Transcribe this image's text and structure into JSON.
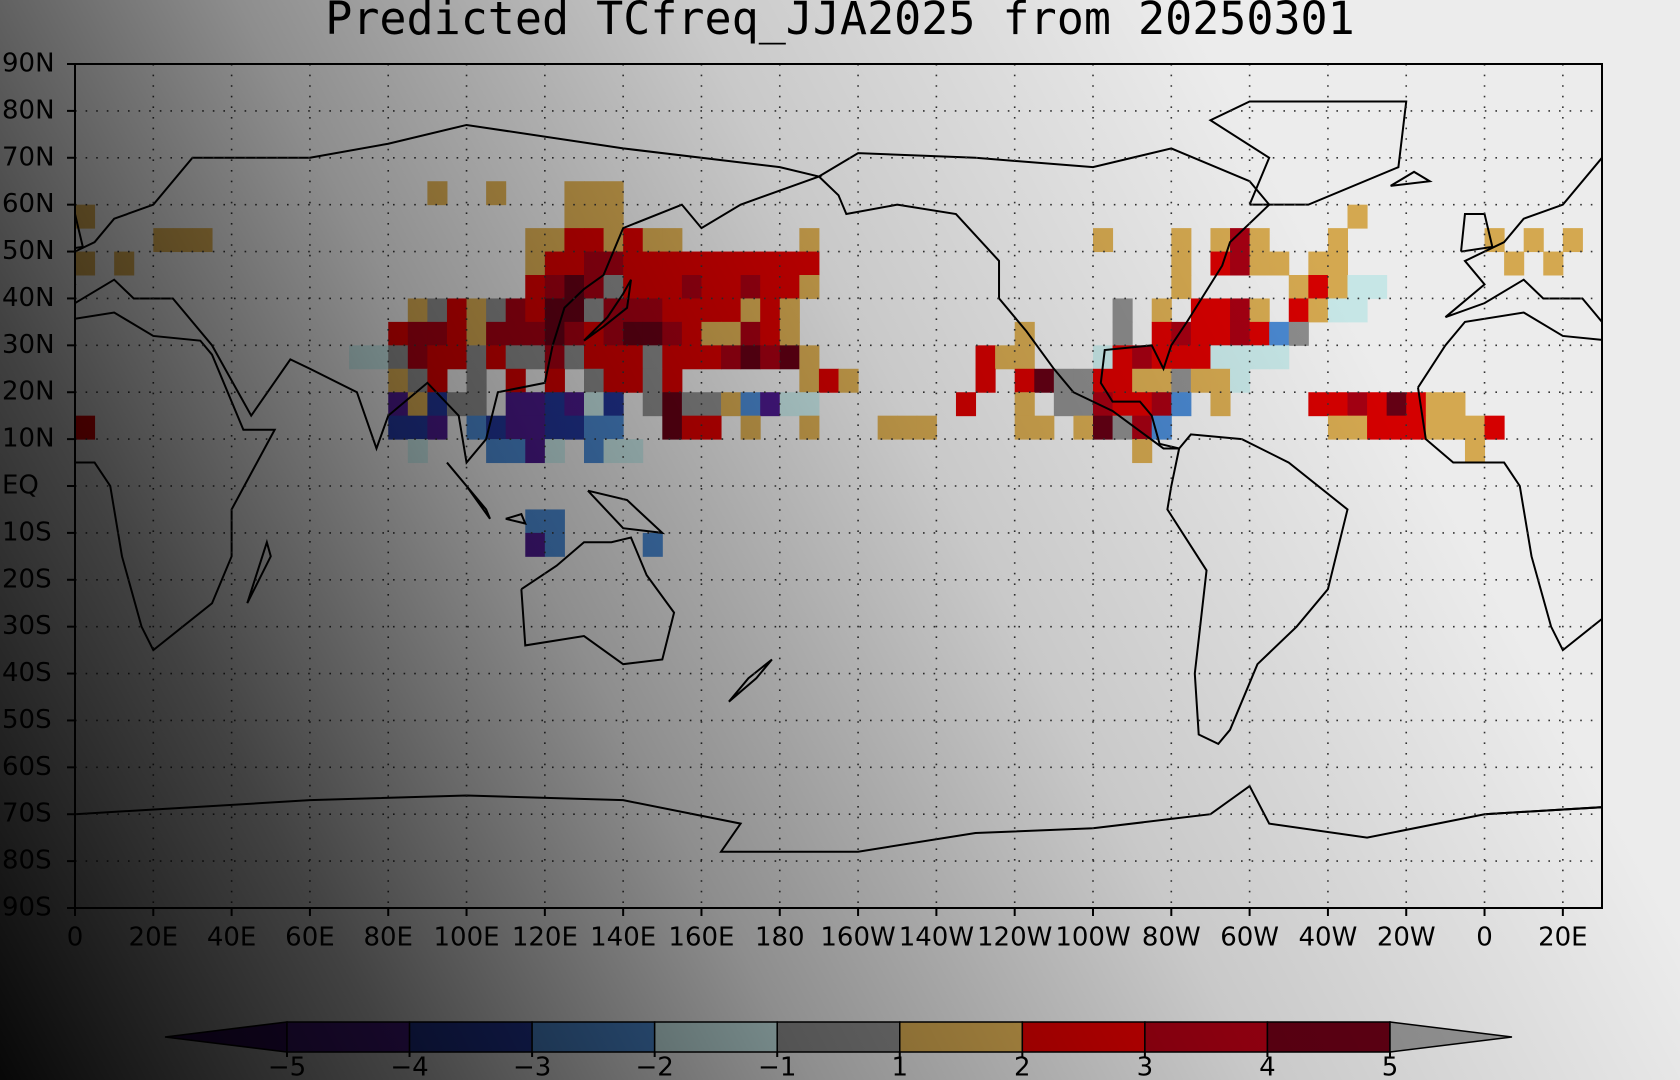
{
  "chart_data": {
    "type": "heatmap",
    "title": "Predicted TCfreq_JJA2025 from 20250301",
    "xlim": [
      0,
      390
    ],
    "ylim": [
      -90,
      90
    ],
    "grid": true,
    "xticks": [
      0,
      {
        "value": 20,
        "label": "20E"
      },
      {
        "value": 40,
        "label": "40E"
      },
      {
        "value": 60,
        "label": "60E"
      },
      {
        "value": 80,
        "label": "80E"
      },
      {
        "value": 100,
        "label": "100E"
      },
      {
        "value": 120,
        "label": "120E"
      },
      {
        "value": 140,
        "label": "140E"
      },
      {
        "value": 160,
        "label": "160E"
      },
      180,
      {
        "value": 200,
        "label": "160W"
      },
      {
        "value": 220,
        "label": "140W"
      },
      {
        "value": 240,
        "label": "120W"
      },
      {
        "value": 260,
        "label": "100W"
      },
      {
        "value": 280,
        "label": "80W"
      },
      {
        "value": 300,
        "label": "60W"
      },
      {
        "value": 320,
        "label": "40W"
      },
      {
        "value": 340,
        "label": "20W"
      },
      {
        "value": 360,
        "label": "0"
      },
      {
        "value": 380,
        "label": "20E"
      }
    ],
    "yticks": [
      {
        "value": 90,
        "label": "90N"
      },
      {
        "value": 80,
        "label": "80N"
      },
      {
        "value": 70,
        "label": "70N"
      },
      {
        "value": 60,
        "label": "60N"
      },
      {
        "value": 50,
        "label": "50N"
      },
      {
        "value": 40,
        "label": "40N"
      },
      {
        "value": 30,
        "label": "30N"
      },
      {
        "value": 20,
        "label": "20N"
      },
      {
        "value": 10,
        "label": "10N"
      },
      {
        "value": 0,
        "label": "EQ"
      },
      {
        "value": -10,
        "label": "10S"
      },
      {
        "value": -20,
        "label": "20S"
      },
      {
        "value": -30,
        "label": "30S"
      },
      {
        "value": -40,
        "label": "40S"
      },
      {
        "value": -50,
        "label": "50S"
      },
      {
        "value": -60,
        "label": "60S"
      },
      {
        "value": -70,
        "label": "70S"
      },
      {
        "value": -80,
        "label": "80S"
      },
      {
        "value": -90,
        "label": "90S"
      }
    ],
    "colorbar": {
      "ticks": [
        {
          "value": -5,
          "label": "−5"
        },
        {
          "value": -4,
          "label": "−4"
        },
        {
          "value": -3,
          "label": "−3"
        },
        {
          "value": -2,
          "label": "−2"
        },
        {
          "value": -1,
          "label": "−1"
        },
        1,
        2,
        3,
        4,
        5
      ],
      "colors": [
        "#3a0e6e",
        "#4b1a8c",
        "#22369a",
        "#4a88d0",
        "#c6e6e6",
        "#8c8c8c",
        "#d4a850",
        "#d40000",
        "#a30012",
        "#640014",
        "#9a9a9a"
      ]
    },
    "cells": [
      [
        90,
        60,
        1.5
      ],
      [
        105,
        60,
        1.5
      ],
      [
        125,
        60,
        1.5
      ],
      [
        130,
        60,
        1.5
      ],
      [
        135,
        60,
        1.5
      ],
      [
        0,
        55,
        1.5
      ],
      [
        125,
        55,
        1.5
      ],
      [
        130,
        55,
        1.5
      ],
      [
        135,
        55,
        1.5
      ],
      [
        325,
        55,
        1.5
      ],
      [
        20,
        50,
        1.5
      ],
      [
        25,
        50,
        1.5
      ],
      [
        30,
        50,
        1.5
      ],
      [
        115,
        50,
        1.5
      ],
      [
        120,
        50,
        1.5
      ],
      [
        125,
        50,
        2.5
      ],
      [
        130,
        50,
        2.5
      ],
      [
        135,
        50,
        1.5
      ],
      [
        140,
        50,
        2.5
      ],
      [
        145,
        50,
        1.5
      ],
      [
        150,
        50,
        1.5
      ],
      [
        185,
        50,
        1.5
      ],
      [
        260,
        50,
        1.5
      ],
      [
        280,
        50,
        1.5
      ],
      [
        290,
        50,
        1.5
      ],
      [
        295,
        50,
        3.5
      ],
      [
        300,
        50,
        1.5
      ],
      [
        320,
        50,
        1.5
      ],
      [
        360,
        50,
        1.5
      ],
      [
        370,
        50,
        1.5
      ],
      [
        380,
        50,
        1.5
      ],
      [
        0,
        45,
        1.5
      ],
      [
        10,
        45,
        1.5
      ],
      [
        115,
        45,
        1.5
      ],
      [
        120,
        45,
        2.5
      ],
      [
        125,
        45,
        2.5
      ],
      [
        130,
        45,
        3.5
      ],
      [
        135,
        45,
        3.5
      ],
      [
        140,
        45,
        2.5
      ],
      [
        145,
        45,
        2.5
      ],
      [
        150,
        45,
        2.5
      ],
      [
        155,
        45,
        2.5
      ],
      [
        160,
        45,
        2.5
      ],
      [
        165,
        45,
        2.5
      ],
      [
        170,
        45,
        2.5
      ],
      [
        175,
        45,
        2.5
      ],
      [
        180,
        45,
        2.5
      ],
      [
        185,
        45,
        2.5
      ],
      [
        280,
        45,
        1.5
      ],
      [
        290,
        45,
        2.5
      ],
      [
        295,
        45,
        3.5
      ],
      [
        300,
        45,
        1.5
      ],
      [
        305,
        45,
        1.5
      ],
      [
        315,
        45,
        1.5
      ],
      [
        320,
        45,
        1.5
      ],
      [
        365,
        45,
        1.5
      ],
      [
        375,
        45,
        1.5
      ],
      [
        115,
        40,
        2.5
      ],
      [
        120,
        40,
        3.5
      ],
      [
        125,
        40,
        4.5
      ],
      [
        130,
        40,
        3.5
      ],
      [
        135,
        40,
        0
      ],
      [
        140,
        40,
        2.5
      ],
      [
        145,
        40,
        2.5
      ],
      [
        150,
        40,
        2.5
      ],
      [
        155,
        40,
        3.5
      ],
      [
        160,
        40,
        2.5
      ],
      [
        165,
        40,
        2.5
      ],
      [
        170,
        40,
        3.5
      ],
      [
        175,
        40,
        2.5
      ],
      [
        180,
        40,
        2.5
      ],
      [
        185,
        40,
        1.5
      ],
      [
        280,
        40,
        1.5
      ],
      [
        310,
        40,
        1.5
      ],
      [
        315,
        40,
        2.5
      ],
      [
        320,
        40,
        1.5
      ],
      [
        325,
        40,
        -1.5
      ],
      [
        330,
        40,
        -1.5
      ],
      [
        85,
        35,
        1.5
      ],
      [
        90,
        35,
        0
      ],
      [
        95,
        35,
        2.5
      ],
      [
        100,
        35,
        1.5
      ],
      [
        105,
        35,
        0
      ],
      [
        110,
        35,
        3.5
      ],
      [
        115,
        35,
        2.5
      ],
      [
        120,
        35,
        4.5
      ],
      [
        125,
        35,
        4.5
      ],
      [
        130,
        35,
        0
      ],
      [
        135,
        35,
        3.5
      ],
      [
        140,
        35,
        3.5
      ],
      [
        145,
        35,
        3.5
      ],
      [
        150,
        35,
        2.5
      ],
      [
        155,
        35,
        2.5
      ],
      [
        160,
        35,
        2.5
      ],
      [
        165,
        35,
        2.5
      ],
      [
        170,
        35,
        1.5
      ],
      [
        175,
        35,
        2.5
      ],
      [
        180,
        35,
        1.5
      ],
      [
        265,
        35,
        0
      ],
      [
        275,
        35,
        1.5
      ],
      [
        285,
        35,
        2.5
      ],
      [
        290,
        35,
        2.5
      ],
      [
        295,
        35,
        3.5
      ],
      [
        300,
        35,
        1.5
      ],
      [
        310,
        35,
        2.5
      ],
      [
        315,
        35,
        1.5
      ],
      [
        320,
        35,
        -1.5
      ],
      [
        325,
        35,
        -1.5
      ],
      [
        80,
        30,
        2.5
      ],
      [
        85,
        30,
        3.5
      ],
      [
        90,
        30,
        3.5
      ],
      [
        95,
        30,
        2.5
      ],
      [
        100,
        30,
        1.5
      ],
      [
        105,
        30,
        3.5
      ],
      [
        110,
        30,
        3.5
      ],
      [
        115,
        30,
        3.5
      ],
      [
        120,
        30,
        4.5
      ],
      [
        125,
        30,
        3.5
      ],
      [
        130,
        30,
        2.5
      ],
      [
        135,
        30,
        3.5
      ],
      [
        140,
        30,
        4.5
      ],
      [
        145,
        30,
        4.5
      ],
      [
        150,
        30,
        3.5
      ],
      [
        155,
        30,
        2.5
      ],
      [
        160,
        30,
        1.5
      ],
      [
        165,
        30,
        1.5
      ],
      [
        170,
        30,
        3.5
      ],
      [
        175,
        30,
        2.5
      ],
      [
        180,
        30,
        1.5
      ],
      [
        240,
        30,
        1.5
      ],
      [
        265,
        30,
        0
      ],
      [
        275,
        30,
        2.5
      ],
      [
        280,
        30,
        3.5
      ],
      [
        285,
        30,
        2.5
      ],
      [
        290,
        30,
        2.5
      ],
      [
        295,
        30,
        3.5
      ],
      [
        300,
        30,
        2.5
      ],
      [
        305,
        30,
        -2.5
      ],
      [
        310,
        30,
        0
      ],
      [
        70,
        25,
        -1.5
      ],
      [
        75,
        25,
        -1.5
      ],
      [
        80,
        25,
        0
      ],
      [
        85,
        25,
        3.5
      ],
      [
        90,
        25,
        2.5
      ],
      [
        95,
        25,
        2.5
      ],
      [
        100,
        25,
        0
      ],
      [
        105,
        25,
        2.5
      ],
      [
        110,
        25,
        0
      ],
      [
        115,
        25,
        0
      ],
      [
        120,
        25,
        3.5
      ],
      [
        125,
        25,
        0
      ],
      [
        130,
        25,
        2.5
      ],
      [
        135,
        25,
        2.5
      ],
      [
        140,
        25,
        2.5
      ],
      [
        145,
        25,
        0
      ],
      [
        150,
        25,
        2.5
      ],
      [
        155,
        25,
        2.5
      ],
      [
        160,
        25,
        2.5
      ],
      [
        165,
        25,
        3.5
      ],
      [
        170,
        25,
        4.5
      ],
      [
        175,
        25,
        3.5
      ],
      [
        180,
        25,
        4.5
      ],
      [
        185,
        25,
        1.5
      ],
      [
        230,
        25,
        2.5
      ],
      [
        235,
        25,
        1.5
      ],
      [
        240,
        25,
        1.5
      ],
      [
        260,
        25,
        -1.5
      ],
      [
        265,
        25,
        2.5
      ],
      [
        270,
        25,
        3.5
      ],
      [
        275,
        25,
        2.5
      ],
      [
        280,
        25,
        2.5
      ],
      [
        285,
        25,
        2.5
      ],
      [
        290,
        25,
        -1.5
      ],
      [
        295,
        25,
        -1.5
      ],
      [
        300,
        25,
        -1.5
      ],
      [
        305,
        25,
        -1.5
      ],
      [
        80,
        20,
        1.5
      ],
      [
        85,
        20,
        0
      ],
      [
        90,
        20,
        2.5
      ],
      [
        100,
        20,
        0
      ],
      [
        110,
        20,
        2.5
      ],
      [
        120,
        20,
        2.5
      ],
      [
        130,
        20,
        0
      ],
      [
        135,
        20,
        2.5
      ],
      [
        140,
        20,
        2.5
      ],
      [
        145,
        20,
        0
      ],
      [
        150,
        20,
        2.5
      ],
      [
        185,
        20,
        1.5
      ],
      [
        190,
        20,
        2.5
      ],
      [
        195,
        20,
        1.5
      ],
      [
        230,
        20,
        2.5
      ],
      [
        240,
        20,
        2.5
      ],
      [
        245,
        20,
        4.5
      ],
      [
        250,
        20,
        0
      ],
      [
        255,
        20,
        0
      ],
      [
        260,
        20,
        2.5
      ],
      [
        265,
        20,
        2.5
      ],
      [
        270,
        20,
        1.5
      ],
      [
        275,
        20,
        1.5
      ],
      [
        280,
        20,
        0
      ],
      [
        285,
        20,
        1.5
      ],
      [
        290,
        20,
        1.5
      ],
      [
        295,
        20,
        -1.5
      ],
      [
        80,
        15,
        -4.5
      ],
      [
        85,
        15,
        1.5
      ],
      [
        90,
        15,
        -3.5
      ],
      [
        95,
        15,
        0
      ],
      [
        100,
        15,
        0
      ],
      [
        110,
        15,
        -4.5
      ],
      [
        115,
        15,
        -4.5
      ],
      [
        120,
        15,
        -3.5
      ],
      [
        125,
        15,
        -4.5
      ],
      [
        130,
        15,
        -1.5
      ],
      [
        135,
        15,
        -3.5
      ],
      [
        145,
        15,
        0
      ],
      [
        150,
        15,
        4.5
      ],
      [
        155,
        15,
        0
      ],
      [
        160,
        15,
        0
      ],
      [
        165,
        15,
        1.5
      ],
      [
        170,
        15,
        -2.5
      ],
      [
        175,
        15,
        -4.5
      ],
      [
        180,
        15,
        -1.5
      ],
      [
        185,
        15,
        -1.5
      ],
      [
        225,
        15,
        2.5
      ],
      [
        240,
        15,
        1.5
      ],
      [
        250,
        15,
        0
      ],
      [
        255,
        15,
        0
      ],
      [
        260,
        15,
        3.5
      ],
      [
        265,
        15,
        2.5
      ],
      [
        270,
        15,
        2.5
      ],
      [
        275,
        15,
        3.5
      ],
      [
        280,
        15,
        -2.5
      ],
      [
        290,
        15,
        1.5
      ],
      [
        315,
        15,
        2.5
      ],
      [
        320,
        15,
        2.5
      ],
      [
        325,
        15,
        3.5
      ],
      [
        330,
        15,
        2.5
      ],
      [
        335,
        15,
        4.5
      ],
      [
        340,
        15,
        2.5
      ],
      [
        345,
        15,
        1.5
      ],
      [
        350,
        15,
        1.5
      ],
      [
        0,
        10,
        2.5
      ],
      [
        80,
        10,
        -3.5
      ],
      [
        85,
        10,
        -3.5
      ],
      [
        90,
        10,
        -4.5
      ],
      [
        100,
        10,
        -2.5
      ],
      [
        105,
        10,
        -3.5
      ],
      [
        110,
        10,
        -4.5
      ],
      [
        115,
        10,
        -4.5
      ],
      [
        120,
        10,
        -3.5
      ],
      [
        125,
        10,
        -3.5
      ],
      [
        130,
        10,
        -2.5
      ],
      [
        135,
        10,
        -2.5
      ],
      [
        150,
        10,
        4.5
      ],
      [
        155,
        10,
        2.5
      ],
      [
        160,
        10,
        2.5
      ],
      [
        170,
        10,
        1.5
      ],
      [
        185,
        10,
        1.5
      ],
      [
        205,
        10,
        1.5
      ],
      [
        210,
        10,
        1.5
      ],
      [
        215,
        10,
        1.5
      ],
      [
        240,
        10,
        1.5
      ],
      [
        245,
        10,
        1.5
      ],
      [
        255,
        10,
        1.5
      ],
      [
        260,
        10,
        4.5
      ],
      [
        265,
        10,
        0
      ],
      [
        270,
        10,
        3.5
      ],
      [
        275,
        10,
        -2.5
      ],
      [
        320,
        10,
        1.5
      ],
      [
        325,
        10,
        1.5
      ],
      [
        330,
        10,
        2.5
      ],
      [
        335,
        10,
        2.5
      ],
      [
        340,
        10,
        2.5
      ],
      [
        345,
        10,
        1.5
      ],
      [
        350,
        10,
        1.5
      ],
      [
        355,
        10,
        1.5
      ],
      [
        360,
        10,
        2.5
      ],
      [
        85,
        5,
        -1.5
      ],
      [
        105,
        5,
        -2.5
      ],
      [
        110,
        5,
        -2.5
      ],
      [
        115,
        5,
        -4.5
      ],
      [
        120,
        5,
        -1.5
      ],
      [
        130,
        5,
        -2.5
      ],
      [
        135,
        5,
        -1.5
      ],
      [
        140,
        5,
        -1.5
      ],
      [
        270,
        5,
        1.5
      ],
      [
        355,
        5,
        1.5
      ],
      [
        115,
        -10,
        -2.5
      ],
      [
        120,
        -10,
        -2.5
      ],
      [
        115,
        -15,
        -4.5
      ],
      [
        120,
        -15,
        -2.5
      ],
      [
        145,
        -15,
        -2.5
      ]
    ]
  }
}
